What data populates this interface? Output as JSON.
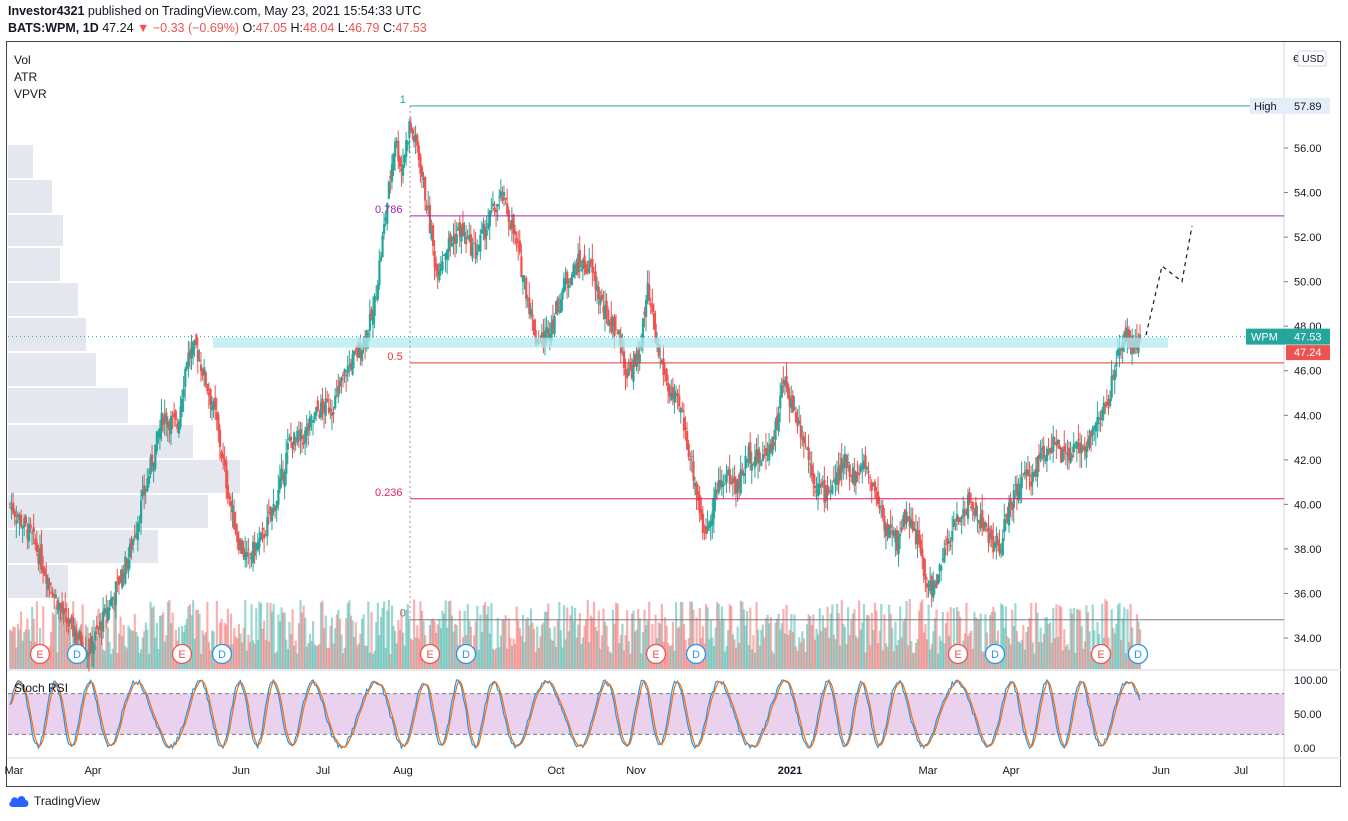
{
  "header": {
    "author": "Investor4321",
    "published": "published on TradingView.com, May 23, 2021 15:54:33 UTC",
    "symbol": "BATS:WPM, 1D",
    "last": "47.24",
    "change": "−0.33 (−0.69%)",
    "o_label": "O:",
    "o": "47.05",
    "h_label": "H:",
    "h": "48.04",
    "l_label": "L:",
    "l": "46.79",
    "c_label": "C:",
    "c": "47.53"
  },
  "indicators": [
    "Vol",
    "ATR",
    "VPVR"
  ],
  "stoch_label": "Stoch RSI",
  "brand": "TradingView",
  "currency": "USD",
  "colors": {
    "up": "#26a69a",
    "down": "#ef5350",
    "fib_top": "#26a69a",
    "fib_0786": "#9c27b0",
    "fib_05": "#e53935",
    "fib_0236": "#e91e63",
    "fib_0": "#787b86",
    "support_zone": "#b2ebf2",
    "stoch_band": "#e1bee7",
    "k_line": "#2196f3",
    "d_line": "#ff6d00"
  },
  "chart_data": {
    "type": "candlestick",
    "price_axis": {
      "ylim": [
        33.0,
        59.5
      ],
      "ticks": [
        "34.00",
        "36.00",
        "38.00",
        "40.00",
        "42.00",
        "44.00",
        "46.00",
        "48.00",
        "50.00",
        "52.00",
        "54.00",
        "56.00"
      ]
    },
    "time_axis": {
      "ticks": [
        "Mar",
        "Apr",
        "Jun",
        "Jul",
        "Aug",
        "Oct",
        "Nov",
        "2021",
        "Mar",
        "Apr",
        "Jun",
        "Jul"
      ]
    },
    "price_labels": [
      {
        "text": "High",
        "value": "57.89"
      },
      {
        "text": "WPM",
        "value": "47.53"
      },
      {
        "text": "",
        "value": "47.24"
      }
    ],
    "fib_levels": [
      {
        "label": "1",
        "value": 57.89
      },
      {
        "label": "0.786",
        "value": 52.95
      },
      {
        "label": "0.5",
        "value": 46.35
      },
      {
        "label": "0.236",
        "value": 40.25
      },
      {
        "label": "0",
        "value": 34.82
      }
    ],
    "support_zone": [
      46.95,
      47.35
    ],
    "projection": [
      [
        47.6,
        0
      ],
      [
        50.7,
        0
      ],
      [
        50.0,
        0
      ],
      [
        52.5,
        0
      ]
    ],
    "events": [
      "E",
      "D",
      "E",
      "D",
      "E",
      "D",
      "E",
      "D",
      "E",
      "D",
      "E",
      "D"
    ],
    "price_path": [
      [
        0,
        40.0
      ],
      [
        14,
        38.5
      ],
      [
        25,
        36.5
      ],
      [
        35,
        34.8
      ],
      [
        50,
        33.4
      ],
      [
        60,
        35.0
      ],
      [
        75,
        37.6
      ],
      [
        85,
        40.5
      ],
      [
        97,
        44.0
      ],
      [
        106,
        43.5
      ],
      [
        112,
        46.6
      ],
      [
        118,
        47.0
      ],
      [
        123,
        45.8
      ],
      [
        130,
        44.0
      ],
      [
        137,
        41.0
      ],
      [
        144,
        38.5
      ],
      [
        150,
        37.5
      ],
      [
        160,
        38.5
      ],
      [
        170,
        40.5
      ],
      [
        177,
        42.8
      ],
      [
        186,
        43.0
      ],
      [
        195,
        44.2
      ],
      [
        205,
        44.5
      ],
      [
        213,
        46.0
      ],
      [
        222,
        47.0
      ],
      [
        230,
        48.5
      ],
      [
        238,
        53.0
      ],
      [
        244,
        56.5
      ],
      [
        248,
        55.0
      ],
      [
        253,
        57.0
      ],
      [
        258,
        56.0
      ],
      [
        264,
        53.5
      ],
      [
        270,
        50.5
      ],
      [
        276,
        51.5
      ],
      [
        285,
        52.3
      ],
      [
        295,
        51.3
      ],
      [
        305,
        53.0
      ],
      [
        312,
        53.8
      ],
      [
        318,
        52.5
      ],
      [
        326,
        50.0
      ],
      [
        333,
        47.5
      ],
      [
        338,
        47.4
      ],
      [
        345,
        48.5
      ],
      [
        352,
        50.0
      ],
      [
        360,
        50.8
      ],
      [
        368,
        50.6
      ],
      [
        377,
        48.5
      ],
      [
        385,
        47.8
      ],
      [
        391,
        45.8
      ],
      [
        398,
        46.5
      ],
      [
        404,
        49.5
      ],
      [
        410,
        47.0
      ],
      [
        418,
        45.0
      ],
      [
        425,
        44.2
      ],
      [
        432,
        41.8
      ],
      [
        440,
        38.6
      ],
      [
        447,
        40.5
      ],
      [
        454,
        41.3
      ],
      [
        461,
        40.8
      ],
      [
        468,
        42.3
      ],
      [
        476,
        42.0
      ],
      [
        484,
        43.0
      ],
      [
        490,
        45.5
      ],
      [
        496,
        44.4
      ],
      [
        503,
        43.0
      ],
      [
        510,
        41.0
      ],
      [
        516,
        40.5
      ],
      [
        523,
        41.0
      ],
      [
        530,
        42.0
      ],
      [
        535,
        41.2
      ],
      [
        542,
        41.8
      ],
      [
        550,
        40.2
      ],
      [
        555,
        39.0
      ],
      [
        562,
        38.3
      ],
      [
        568,
        39.7
      ],
      [
        575,
        38.4
      ],
      [
        581,
        36.2
      ],
      [
        587,
        36.4
      ],
      [
        593,
        38.0
      ],
      [
        600,
        39.3
      ],
      [
        607,
        40.0
      ],
      [
        614,
        39.5
      ],
      [
        620,
        38.5
      ],
      [
        627,
        38.0
      ],
      [
        633,
        39.8
      ],
      [
        640,
        41.0
      ],
      [
        647,
        41.2
      ],
      [
        654,
        42.3
      ],
      [
        661,
        42.8
      ],
      [
        668,
        42.0
      ],
      [
        675,
        42.4
      ],
      [
        682,
        42.8
      ],
      [
        690,
        43.8
      ],
      [
        696,
        44.7
      ],
      [
        702,
        46.6
      ],
      [
        706,
        47.7
      ],
      [
        710,
        47.2
      ],
      [
        716,
        47.24
      ]
    ],
    "stoch_rsi": {
      "ylim": [
        0,
        100
      ],
      "ticks": [
        "100.00",
        "50.00",
        "0.00"
      ],
      "bands": [
        20,
        80
      ]
    }
  }
}
